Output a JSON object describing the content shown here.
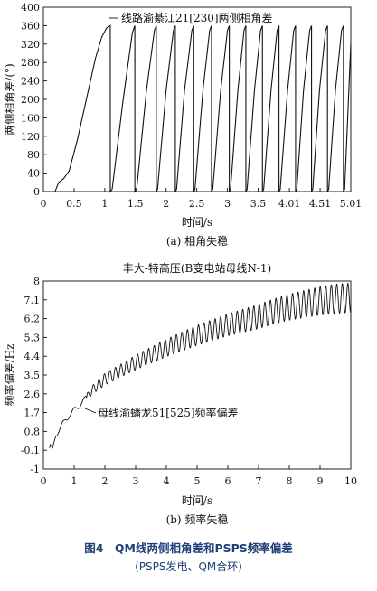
{
  "figure": {
    "caption_title": "图4　QM线两侧相角差和PSPS频率偏差",
    "caption_sub": "(PSPS发电、QM合环)"
  },
  "chart_data": [
    {
      "type": "line",
      "title": "",
      "panel_label": "(a) 相角失稳",
      "xlabel": "时间/s",
      "ylabel": "两侧相角差/(°)",
      "xlim": [
        0,
        5.01
      ],
      "ylim": [
        0,
        400
      ],
      "xticks": [
        0,
        0.5,
        1,
        1.5,
        2,
        2.5,
        3,
        3.5,
        4.01,
        4.51,
        5.01
      ],
      "xtick_labels": [
        "0",
        "0.5",
        "1",
        "1.5",
        "2",
        "2.5",
        "3",
        "3.5",
        "4.01",
        "4.51",
        "5.01"
      ],
      "yticks": [
        0,
        40,
        80,
        120,
        160,
        200,
        240,
        280,
        320,
        360,
        400
      ],
      "grid": false,
      "annotation": "线路渝綦江21[230]两侧相角差",
      "series": [
        {
          "x": [
            0,
            0.19,
            0.25,
            0.33,
            0.42,
            0.55,
            0.7,
            0.85,
            0.95,
            1.03,
            1.07,
            1.09,
            1.09,
            1.12,
            1.3,
            1.45,
            1.49,
            1.49,
            1.52,
            1.68,
            1.81,
            1.84,
            1.84,
            1.86,
            2.0,
            2.12,
            2.15,
            2.15,
            2.17,
            2.3,
            2.42,
            2.45,
            2.45,
            2.47,
            2.6,
            2.71,
            2.74,
            2.74,
            2.76,
            2.89,
            3.0,
            3.03,
            3.03,
            3.05,
            3.17,
            3.27,
            3.3,
            3.3,
            3.32,
            3.44,
            3.54,
            3.57,
            3.57,
            3.59,
            3.71,
            3.81,
            3.84,
            3.84,
            3.86,
            3.98,
            4.08,
            4.11,
            4.11,
            4.13,
            4.24,
            4.34,
            4.37,
            4.37,
            4.39,
            4.5,
            4.6,
            4.63,
            4.63,
            4.65,
            4.76,
            4.86,
            4.89,
            4.89,
            4.91,
            5.01
          ],
          "y": [
            0,
            0,
            20,
            28,
            45,
            110,
            200,
            290,
            335,
            355,
            358,
            360,
            0,
            5,
            200,
            345,
            360,
            0,
            5,
            220,
            350,
            360,
            0,
            5,
            220,
            350,
            360,
            0,
            5,
            220,
            350,
            360,
            0,
            5,
            220,
            350,
            360,
            0,
            5,
            220,
            350,
            360,
            0,
            5,
            220,
            350,
            360,
            0,
            5,
            220,
            350,
            360,
            0,
            5,
            220,
            350,
            360,
            0,
            5,
            220,
            350,
            360,
            0,
            5,
            220,
            350,
            360,
            0,
            5,
            220,
            350,
            360,
            0,
            5,
            220,
            350,
            360,
            0,
            5,
            320
          ]
        }
      ]
    },
    {
      "type": "line",
      "title": "丰大-特高压(B变电站母线N-1)",
      "panel_label": "(b) 频率失稳",
      "xlabel": "时间/s",
      "ylabel": "频率偏差/Hz",
      "xlim": [
        0,
        10
      ],
      "ylim": [
        -1,
        8
      ],
      "xticks": [
        0,
        1,
        2,
        3,
        4,
        5,
        6,
        7,
        8,
        9,
        10
      ],
      "xtick_labels": [
        "0",
        "1",
        "2",
        "3",
        "4",
        "5",
        "6",
        "7",
        "8",
        "9",
        "10"
      ],
      "yticks": [
        -1,
        -0.1,
        0.8,
        1.7,
        2.6,
        3.5,
        4.4,
        5.3,
        6.2,
        7.1,
        8
      ],
      "ytick_labels": [
        "-1",
        "-0.1",
        "0.8",
        "1.7",
        "2.6",
        "3.5",
        "4.4",
        "5.3",
        "6.2",
        "7.1",
        "8"
      ],
      "grid": false,
      "annotation": "母线渝蟠龙51[525]频率偏差",
      "series": [
        {
          "x": [
            0.2,
            0.22,
            0.3,
            0.4,
            0.6,
            0.8,
            1.0,
            1.15,
            1.35,
            1.6,
            1.8,
            2.0,
            2.5,
            3.0,
            3.5,
            4.0,
            4.5,
            5.0,
            5.5,
            6.0,
            6.5,
            7.0,
            7.5,
            8.0,
            8.5,
            9.0,
            9.5,
            10.0
          ],
          "y": [
            0.0,
            0.15,
            -0.05,
            0.6,
            1.1,
            1.5,
            1.8,
            2.05,
            2.3,
            2.8,
            3.05,
            3.3,
            3.7,
            4.1,
            4.45,
            4.8,
            5.1,
            5.4,
            5.65,
            5.9,
            6.1,
            6.3,
            6.55,
            6.75,
            6.9,
            7.05,
            7.15,
            7.2
          ],
          "oscillation_amplitude": [
            0.0,
            0.05,
            0.05,
            0.1,
            0.12,
            0.12,
            0.14,
            0.15,
            0.16,
            0.2,
            0.25,
            0.28,
            0.3,
            0.35,
            0.38,
            0.42,
            0.45,
            0.48,
            0.5,
            0.52,
            0.55,
            0.58,
            0.6,
            0.62,
            0.65,
            0.68,
            0.7,
            0.7
          ],
          "oscillation_start": 1.4,
          "oscillation_period": 0.18
        }
      ]
    }
  ]
}
